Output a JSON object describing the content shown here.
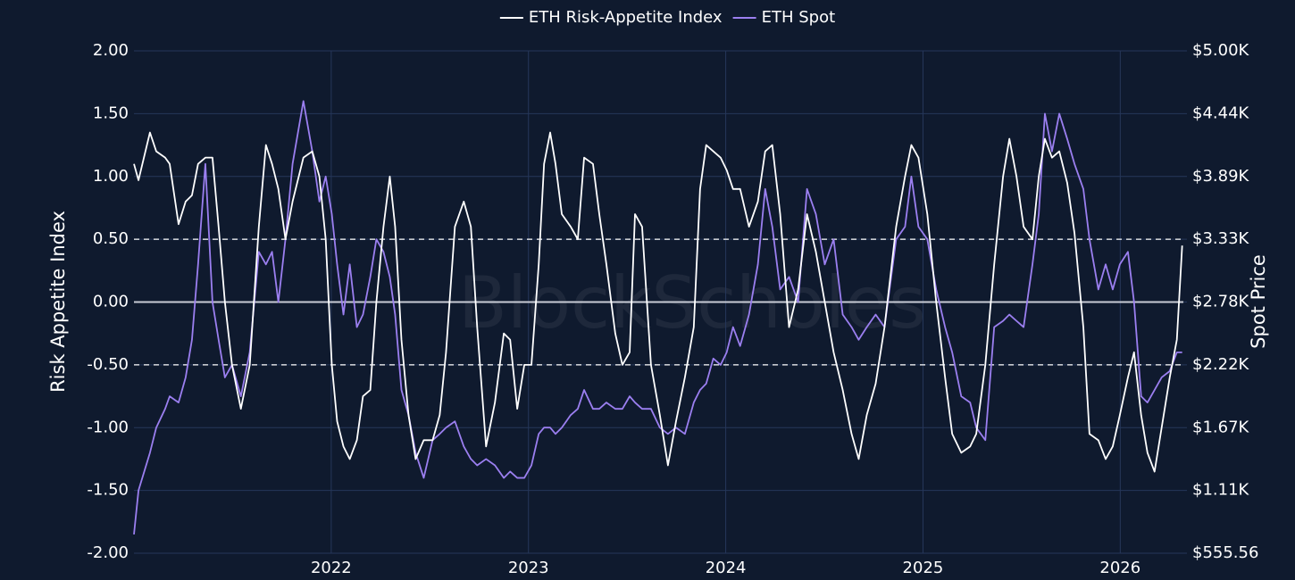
{
  "chart_data": {
    "type": "line",
    "legend": "top",
    "grid": true,
    "background": "#0f1a2e",
    "watermark": "BlockScholes",
    "y_label": "Risk Appetite Index",
    "y2_label": "Spot Price",
    "xlim": [
      2021.0,
      2026.32
    ],
    "xticks": [
      2022,
      2023,
      2024,
      2025,
      2026
    ],
    "ylim": [
      -2,
      2
    ],
    "yticks": [
      {
        "value": -2,
        "label": "-2.00"
      },
      {
        "value": -1.5,
        "label": "-1.50"
      },
      {
        "value": -1,
        "label": "-1.00"
      },
      {
        "value": -0.5,
        "label": "-0.50"
      },
      {
        "value": 0,
        "label": "0.00"
      },
      {
        "value": 0.5,
        "label": "0.50"
      },
      {
        "value": 1,
        "label": "1.00"
      },
      {
        "value": 1.5,
        "label": "1.50"
      },
      {
        "value": 2,
        "label": "2.00"
      }
    ],
    "y2lim": [
      555.56,
      5000
    ],
    "y2ticks": [
      {
        "value": 555.56,
        "label": "$555.56"
      },
      {
        "value": 1111.11,
        "label": "$1.11K"
      },
      {
        "value": 1666.67,
        "label": "$1.67K"
      },
      {
        "value": 2222.22,
        "label": "$2.22K"
      },
      {
        "value": 2777.78,
        "label": "$2.78K"
      },
      {
        "value": 3333.33,
        "label": "$3.33K"
      },
      {
        "value": 3888.89,
        "label": "$3.89K"
      },
      {
        "value": 4444.44,
        "label": "$4.44K"
      },
      {
        "value": 5000,
        "label": "$5.00K"
      }
    ],
    "hlines": [
      {
        "value": 0.5,
        "style": "dashed"
      },
      {
        "value": -0.5,
        "style": "dashed"
      },
      {
        "value": 0,
        "style": "solid"
      }
    ],
    "x": [
      2021.0,
      2021.023,
      2021.081,
      2021.113,
      2021.158,
      2021.181,
      2021.226,
      2021.262,
      2021.294,
      2021.325,
      2021.362,
      2021.398,
      2021.429,
      2021.461,
      2021.497,
      2021.542,
      2021.587,
      2021.633,
      2021.669,
      2021.7,
      2021.732,
      2021.768,
      2021.804,
      2021.859,
      2021.904,
      2021.94,
      2021.972,
      2022.003,
      2022.03,
      2022.062,
      2022.094,
      2022.13,
      2022.161,
      2022.198,
      2022.229,
      2022.265,
      2022.297,
      2022.324,
      2022.356,
      2022.392,
      2022.428,
      2022.469,
      2022.514,
      2022.55,
      2022.582,
      2022.627,
      2022.672,
      2022.708,
      2022.74,
      2022.785,
      2022.83,
      2022.875,
      2022.907,
      2022.943,
      2022.979,
      2023.015,
      2023.052,
      2023.079,
      2023.11,
      2023.137,
      2023.169,
      2023.214,
      2023.25,
      2023.282,
      2023.327,
      2023.359,
      2023.395,
      2023.44,
      2023.476,
      2023.513,
      2023.54,
      2023.576,
      2023.621,
      2023.666,
      2023.707,
      2023.748,
      2023.793,
      2023.838,
      2023.87,
      2023.901,
      2023.937,
      2023.974,
      2024.005,
      2024.037,
      2024.073,
      2024.118,
      2024.163,
      2024.2,
      2024.236,
      2024.276,
      2024.321,
      2024.367,
      2024.412,
      2024.457,
      2024.502,
      2024.547,
      2024.593,
      2024.638,
      2024.674,
      2024.715,
      2024.76,
      2024.805,
      2024.864,
      2024.909,
      2024.941,
      2024.977,
      2025.022,
      2025.067,
      2025.112,
      2025.148,
      2025.194,
      2025.239,
      2025.27,
      2025.316,
      2025.361,
      2025.406,
      2025.438,
      2025.474,
      2025.51,
      2025.555,
      2025.587,
      2025.618,
      2025.654,
      2025.691,
      2025.731,
      2025.768,
      2025.813,
      2025.844,
      2025.889,
      2025.926,
      2025.962,
      2025.998,
      2026.039,
      2026.07,
      2026.106,
      2026.138,
      2026.174,
      2026.21,
      2026.251,
      2026.287,
      2026.314
    ],
    "series": [
      {
        "name": "ETH Risk-Appetite Index",
        "color": "#ffffff",
        "values": [
          1.1,
          0.97,
          1.35,
          1.2,
          1.15,
          1.1,
          0.62,
          0.8,
          0.85,
          1.1,
          1.15,
          1.15,
          0.6,
          0.0,
          -0.5,
          -0.85,
          -0.5,
          0.6,
          1.25,
          1.1,
          0.9,
          0.5,
          0.8,
          1.15,
          1.2,
          1.0,
          0.5,
          -0.5,
          -0.95,
          -1.15,
          -1.25,
          -1.1,
          -0.75,
          -0.7,
          0.0,
          0.6,
          1.0,
          0.6,
          -0.3,
          -0.9,
          -1.25,
          -1.1,
          -1.1,
          -0.9,
          -0.4,
          0.6,
          0.8,
          0.6,
          -0.2,
          -1.15,
          -0.8,
          -0.25,
          -0.3,
          -0.85,
          -0.5,
          -0.5,
          0.3,
          1.1,
          1.35,
          1.1,
          0.7,
          0.6,
          0.5,
          1.15,
          1.1,
          0.7,
          0.3,
          -0.25,
          -0.5,
          -0.4,
          0.7,
          0.6,
          -0.5,
          -0.9,
          -1.3,
          -0.95,
          -0.6,
          -0.2,
          0.9,
          1.25,
          1.2,
          1.15,
          1.05,
          0.9,
          0.9,
          0.6,
          0.8,
          1.2,
          1.25,
          0.7,
          -0.2,
          0.1,
          0.7,
          0.4,
          0.0,
          -0.4,
          -0.7,
          -1.05,
          -1.25,
          -0.9,
          -0.65,
          -0.2,
          0.6,
          1.0,
          1.25,
          1.15,
          0.7,
          0.0,
          -0.6,
          -1.05,
          -1.2,
          -1.15,
          -1.05,
          -0.5,
          0.3,
          1.0,
          1.3,
          1.0,
          0.6,
          0.5,
          1.0,
          1.3,
          1.15,
          1.2,
          0.95,
          0.55,
          -0.2,
          -1.05,
          -1.1,
          -1.25,
          -1.15,
          -0.9,
          -0.6,
          -0.4,
          -0.9,
          -1.2,
          -1.35,
          -1.0,
          -0.6,
          -0.3,
          0.45
        ]
      },
      {
        "name": "ETH Spot",
        "color": "#9b7ff0",
        "axis": "y2",
        "values": [
          722,
          1111,
          1444,
          1667,
          1833,
          1944,
          1889,
          2111,
          2444,
          3111,
          4000,
          2778,
          2444,
          2111,
          2222,
          1944,
          2333,
          3222,
          3111,
          3222,
          2778,
          3333,
          4000,
          4556,
          4111,
          3667,
          3889,
          3556,
          3111,
          2667,
          3111,
          2556,
          2667,
          3000,
          3333,
          3222,
          3000,
          2667,
          2000,
          1778,
          1444,
          1222,
          1556,
          1611,
          1667,
          1722,
          1500,
          1389,
          1333,
          1389,
          1333,
          1222,
          1278,
          1222,
          1222,
          1333,
          1611,
          1667,
          1667,
          1611,
          1667,
          1778,
          1833,
          2000,
          1833,
          1833,
          1889,
          1833,
          1833,
          1944,
          1889,
          1833,
          1833,
          1667,
          1611,
          1667,
          1611,
          1889,
          2000,
          2056,
          2278,
          2222,
          2333,
          2556,
          2389,
          2667,
          3111,
          3778,
          3444,
          2889,
          3000,
          2778,
          3778,
          3556,
          3111,
          3333,
          2667,
          2556,
          2444,
          2556,
          2667,
          2556,
          3333,
          3444,
          3889,
          3444,
          3333,
          2889,
          2556,
          2333,
          1944,
          1889,
          1667,
          1556,
          2556,
          2611,
          2667,
          2611,
          2556,
          3111,
          3556,
          4444,
          4111,
          4444,
          4222,
          4000,
          3778,
          3333,
          2889,
          3111,
          2889,
          3111,
          3222,
          2778,
          1944,
          1889,
          2000,
          2111,
          2167,
          2333,
          2333
        ]
      }
    ]
  }
}
